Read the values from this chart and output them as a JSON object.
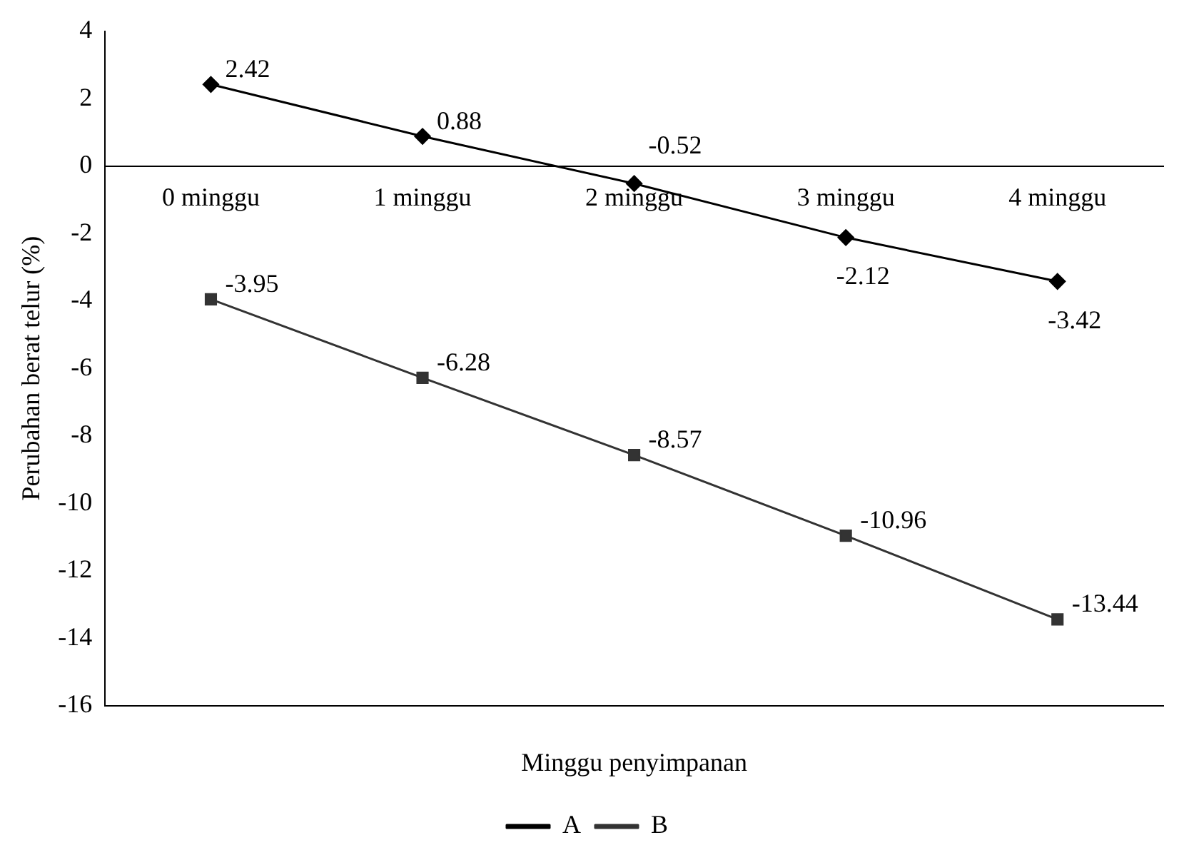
{
  "chart_data": {
    "type": "line",
    "xlabel": "Minggu penyimpanan",
    "ylabel": "Perubahan berat telur (%)",
    "categories": [
      "0 minggu",
      "1 minggu",
      "2 minggu",
      "3 minggu",
      "4 minggu"
    ],
    "series": [
      {
        "name": "A",
        "color": "#000000",
        "marker": "diamond",
        "values": [
          2.42,
          0.88,
          -0.52,
          -2.12,
          -3.42
        ]
      },
      {
        "name": "B",
        "color": "#333333",
        "marker": "square",
        "values": [
          -3.95,
          -6.28,
          -8.57,
          -10.96,
          -13.44
        ]
      }
    ],
    "ylim": [
      -16,
      4
    ],
    "yticks": [
      -16,
      -14,
      -12,
      -10,
      -8,
      -6,
      -4,
      -2,
      0,
      2,
      4
    ],
    "data_labels": true,
    "legend": "bottom",
    "grid": false
  }
}
